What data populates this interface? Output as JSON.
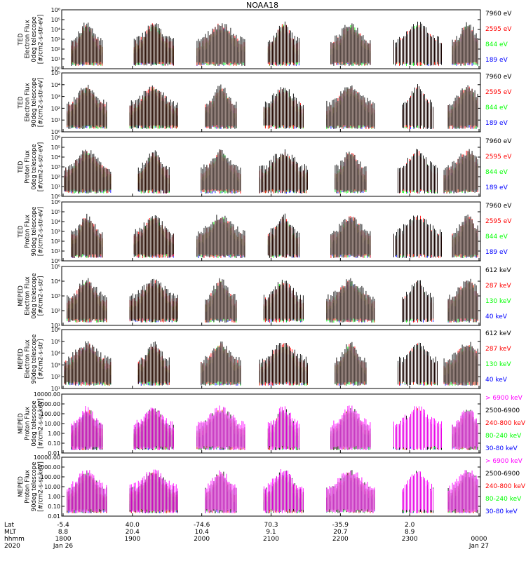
{
  "title": "NOAA18",
  "colors": {
    "black": "#000000",
    "blue": "#0000ff",
    "red": "#ff0000",
    "green": "#00ff00",
    "magenta": "#ff00ff"
  },
  "chart_data": [
    {
      "type": "line",
      "scale": "log",
      "ylabel": [
        "TED",
        "Electron Flux",
        "0deg telescope",
        "[#/cm2-s-str-eV]"
      ],
      "tick_labels": [
        "10⁰",
        "10¹",
        "10²",
        "10³",
        "10⁴",
        "10⁵",
        "10⁶"
      ],
      "ylim_exp": [
        0,
        6
      ],
      "legend": [
        {
          "label": "7960 eV",
          "color": "#000000"
        },
        {
          "label": "2595 eV",
          "color": "#ff0000"
        },
        {
          "label": "844 eV",
          "color": "#00ff00"
        },
        {
          "label": "189 eV",
          "color": "#0000ff"
        }
      ]
    },
    {
      "type": "line",
      "scale": "log",
      "ylabel": [
        "TED",
        "Electron Flux",
        "90deg telescope",
        "[#/cm2-s-str-eV]"
      ],
      "tick_labels": [
        "10⁰",
        "10¹",
        "10²",
        "10³",
        "10⁴",
        "10⁵"
      ],
      "ylim_exp": [
        0,
        5
      ],
      "legend": [
        {
          "label": "7960 eV",
          "color": "#000000"
        },
        {
          "label": "2595 eV",
          "color": "#ff0000"
        },
        {
          "label": "844 eV",
          "color": "#00ff00"
        },
        {
          "label": "189 eV",
          "color": "#0000ff"
        }
      ]
    },
    {
      "type": "line",
      "scale": "log",
      "ylabel": [
        "TED",
        "Proton Flux",
        "0deg telescope",
        "[#/cm2-s-str-eV]"
      ],
      "tick_labels": [
        "10⁰",
        "10¹",
        "10²",
        "10³",
        "10⁴",
        "10⁵",
        "10⁶"
      ],
      "ylim_exp": [
        0,
        6
      ],
      "legend": [
        {
          "label": "7960 eV",
          "color": "#000000"
        },
        {
          "label": "2595 eV",
          "color": "#ff0000"
        },
        {
          "label": "844 eV",
          "color": "#00ff00"
        },
        {
          "label": "189 eV",
          "color": "#0000ff"
        }
      ]
    },
    {
      "type": "line",
      "scale": "log",
      "ylabel": [
        "TED",
        "Proton Flux",
        "90deg telescope",
        "[#/cm2-s-str-eV]"
      ],
      "tick_labels": [
        "10⁰",
        "10¹",
        "10²",
        "10³",
        "10⁴",
        "10⁵",
        "10⁶"
      ],
      "ylim_exp": [
        0,
        6
      ],
      "legend": [
        {
          "label": "7960 eV",
          "color": "#000000"
        },
        {
          "label": "2595 eV",
          "color": "#ff0000"
        },
        {
          "label": "844 eV",
          "color": "#00ff00"
        },
        {
          "label": "189 eV",
          "color": "#0000ff"
        }
      ]
    },
    {
      "type": "line",
      "scale": "log",
      "ylabel": [
        "MEPED",
        "Electron Flux",
        "0deg telescope",
        "[#/cm2-s-str]"
      ],
      "tick_labels": [
        "10¹",
        "10²",
        "10³",
        "10⁴",
        "10⁵"
      ],
      "ylim_exp": [
        1,
        5
      ],
      "legend": [
        {
          "label": "612 keV",
          "color": "#000000"
        },
        {
          "label": "287 keV",
          "color": "#ff0000"
        },
        {
          "label": "130 keV",
          "color": "#00ff00"
        },
        {
          "label": "40 keV",
          "color": "#0000ff"
        }
      ]
    },
    {
      "type": "line",
      "scale": "log",
      "ylabel": [
        "MEPED",
        "Electron Flux",
        "90deg telescope",
        "[#/cm2-s-str]"
      ],
      "tick_labels": [
        "10¹",
        "10²",
        "10³",
        "10⁴",
        "10⁵",
        "10⁶"
      ],
      "ylim_exp": [
        1,
        6
      ],
      "legend": [
        {
          "label": "612 keV",
          "color": "#000000"
        },
        {
          "label": "287 keV",
          "color": "#ff0000"
        },
        {
          "label": "130 keV",
          "color": "#00ff00"
        },
        {
          "label": "40 keV",
          "color": "#0000ff"
        }
      ]
    },
    {
      "type": "line",
      "scale": "log",
      "ylabel": [
        "MEPED",
        "Proton Flux",
        "0deg telescope",
        "[#/cm2-s-sr-keV]"
      ],
      "tick_labels": [
        "0.01",
        "0.10",
        "1.00",
        "10.00",
        "100.00",
        "1000.00",
        "10000.00"
      ],
      "ylim_exp": [
        -2,
        4
      ],
      "legend": [
        {
          "label": "> 6900 keV",
          "color": "#ff00ff"
        },
        {
          "label": "2500-6900",
          "color": "#000000"
        },
        {
          "label": "240-800 keV",
          "color": "#ff0000"
        },
        {
          "label": "80-240 keV",
          "color": "#00ff00"
        },
        {
          "label": "30-80 keV",
          "color": "#0000ff"
        }
      ]
    },
    {
      "type": "line",
      "scale": "log",
      "ylabel": [
        "MEPED",
        "Proton Flux",
        "90deg telescope",
        "[#/cm2-s-sr-keV]"
      ],
      "tick_labels": [
        "0.01",
        "0.10",
        "1.00",
        "10.00",
        "100.00",
        "1000.00",
        "10000.00"
      ],
      "ylim_exp": [
        -2,
        4
      ],
      "legend": [
        {
          "label": "> 6900 keV",
          "color": "#ff00ff"
        },
        {
          "label": "2500-6900",
          "color": "#000000"
        },
        {
          "label": "240-800 keV",
          "color": "#ff0000"
        },
        {
          "label": "80-240 keV",
          "color": "#00ff00"
        },
        {
          "label": "30-80 keV",
          "color": "#0000ff"
        }
      ]
    }
  ],
  "xaxis": {
    "row_labels": [
      "Lat",
      "MLT",
      "hhmm",
      "2020"
    ],
    "ticks": [
      {
        "lat": "-5.4",
        "mlt": "8.8",
        "hhmm": "1800",
        "date": "Jan 26"
      },
      {
        "lat": "40.0",
        "mlt": "20.4",
        "hhmm": "1900",
        "date": ""
      },
      {
        "lat": "-74.6",
        "mlt": "10.4",
        "hhmm": "2000",
        "date": ""
      },
      {
        "lat": "70.3",
        "mlt": "9.1",
        "hhmm": "2100",
        "date": ""
      },
      {
        "lat": "-35.9",
        "mlt": "20.7",
        "hhmm": "2200",
        "date": ""
      },
      {
        "lat": "2.0",
        "mlt": "8.9",
        "hhmm": "2300",
        "date": ""
      },
      {
        "lat": "",
        "mlt": "",
        "hhmm": "0000",
        "date": "Jan 27"
      }
    ]
  }
}
